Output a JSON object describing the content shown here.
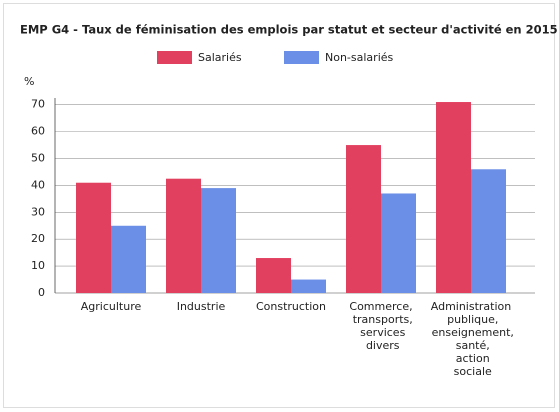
{
  "chart_data": {
    "type": "bar",
    "title": "EMP G4 - Taux de féminisation des emplois par statut et secteur d'activité en 2015",
    "y_label": "%",
    "categories": [
      "Agriculture",
      "Industrie",
      "Construction",
      "Commerce, transports, services divers",
      "Administration publique, enseignement, santé, action sociale"
    ],
    "series": [
      {
        "name": "Salariés",
        "color": "#e2405f",
        "values": [
          41,
          42.5,
          13,
          55,
          71
        ]
      },
      {
        "name": "Non-salariés",
        "color": "#6b8fe6",
        "values": [
          25,
          39,
          5,
          37,
          46
        ]
      }
    ],
    "ylim": [
      0,
      72.5
    ],
    "yticks": [
      0,
      10,
      20,
      30,
      40,
      50,
      60,
      70
    ],
    "grid": true,
    "legend": "top"
  }
}
